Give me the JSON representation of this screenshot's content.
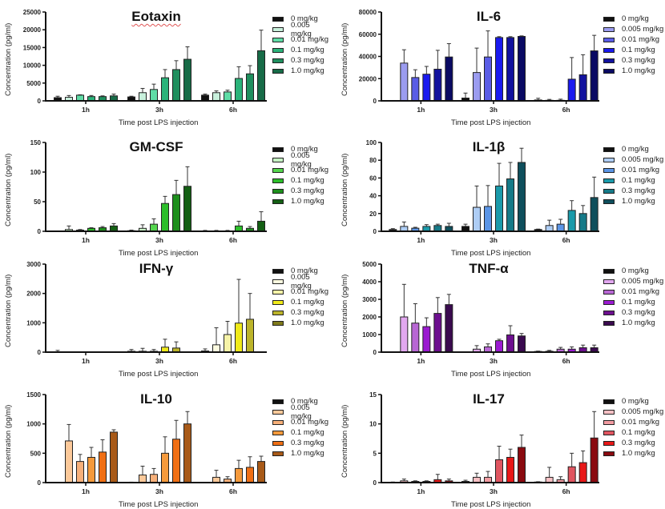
{
  "legend_labels": [
    "0 mg/kg",
    "0.005 mg/kg",
    "0.01 mg/kg",
    "0.1 mg/kg",
    "0.3 mg/kg",
    "1.0 mg/kg"
  ],
  "chart_data": [
    {
      "type": "bar",
      "title": "Eotaxin",
      "xlabel": "Time post LPS injection",
      "ylabel": "Concentration (pg/ml)",
      "categories": [
        "1h",
        "3h",
        "6h"
      ],
      "ylim": [
        0,
        25000
      ],
      "yticks": [
        0,
        5000,
        10000,
        15000,
        20000,
        25000
      ],
      "legend": "right",
      "colors": [
        "#111111",
        "#c8f0dc",
        "#5fdca6",
        "#2bb37a",
        "#1f8f5e",
        "#176b47"
      ],
      "series": [
        {
          "name": "0 mg/kg",
          "values": [
            900,
            1100,
            1600
          ],
          "errors": [
            400,
            200,
            300
          ]
        },
        {
          "name": "0.005 mg/kg",
          "values": [
            1000,
            2300,
            2300
          ],
          "errors": [
            500,
            1200,
            500
          ]
        },
        {
          "name": "0.01 mg/kg",
          "values": [
            1600,
            3200,
            2500
          ],
          "errors": [
            100,
            1500,
            500
          ]
        },
        {
          "name": "0.1 mg/kg",
          "values": [
            1200,
            6500,
            6300
          ],
          "errors": [
            300,
            2300,
            3300
          ]
        },
        {
          "name": "0.3 mg/kg",
          "values": [
            1200,
            8800,
            7600
          ],
          "errors": [
            200,
            2500,
            2300
          ]
        },
        {
          "name": "1.0 mg/kg",
          "values": [
            1400,
            11700,
            14100
          ],
          "errors": [
            500,
            3500,
            5800
          ]
        }
      ]
    },
    {
      "type": "bar",
      "title": "IL-6",
      "xlabel": "Time post LPS injection",
      "ylabel": "Concentration (pg/ml)",
      "categories": [
        "1h",
        "3h",
        "6h"
      ],
      "ylim": [
        0,
        80000
      ],
      "yticks": [
        0,
        20000,
        40000,
        60000,
        80000
      ],
      "legend": "right",
      "colors": [
        "#111111",
        "#9b9cf0",
        "#5a5de6",
        "#1a1aef",
        "#12129e",
        "#0a0a63"
      ],
      "series": [
        {
          "name": "0 mg/kg",
          "values": [
            0,
            2500,
            800
          ],
          "errors": [
            0,
            4500,
            1500
          ]
        },
        {
          "name": "0.005 mg/kg",
          "values": [
            34000,
            25500,
            500
          ],
          "errors": [
            12000,
            22000,
            800
          ]
        },
        {
          "name": "0.01 mg/kg",
          "values": [
            21000,
            39500,
            500
          ],
          "errors": [
            7000,
            23500,
            1000
          ]
        },
        {
          "name": "0.1 mg/kg",
          "values": [
            24000,
            57000,
            19500
          ],
          "errors": [
            7000,
            800,
            19500
          ]
        },
        {
          "name": "0.3 mg/kg",
          "values": [
            28500,
            57000,
            23500
          ],
          "errors": [
            17000,
            800,
            18000
          ]
        },
        {
          "name": "1.0 mg/kg",
          "values": [
            39500,
            58000,
            45000
          ],
          "errors": [
            12000,
            500,
            14000
          ]
        }
      ]
    },
    {
      "type": "bar",
      "title": "GM-CSF",
      "xlabel": "Time post LPS injection",
      "ylabel": "Concentration (pg/ml)",
      "categories": [
        "1h",
        "3h",
        "6h"
      ],
      "ylim": [
        0,
        150
      ],
      "yticks": [
        0,
        50,
        100,
        150
      ],
      "legend": "right",
      "colors": [
        "#111111",
        "#c6f2c4",
        "#55d64e",
        "#2cbe2a",
        "#1d8f1c",
        "#145f14"
      ],
      "series": [
        {
          "name": "0 mg/kg",
          "values": [
            0,
            1,
            0.5
          ],
          "errors": [
            0,
            1,
            1
          ]
        },
        {
          "name": "0.005 mg/kg",
          "values": [
            3,
            5,
            0.5
          ],
          "errors": [
            6,
            6,
            1
          ]
        },
        {
          "name": "0.01 mg/kg",
          "values": [
            2,
            12,
            0.5
          ],
          "errors": [
            1,
            9,
            1
          ]
        },
        {
          "name": "0.1 mg/kg",
          "values": [
            5,
            47,
            9
          ],
          "errors": [
            1,
            12,
            8
          ]
        },
        {
          "name": "0.3 mg/kg",
          "values": [
            6,
            62,
            5
          ],
          "errors": [
            2,
            24,
            3
          ]
        },
        {
          "name": "1.0 mg/kg",
          "values": [
            9,
            76,
            17
          ],
          "errors": [
            4,
            33,
            16
          ]
        }
      ]
    },
    {
      "type": "bar",
      "title": "IL-1β",
      "xlabel": "Time post LPS injection",
      "ylabel": "Concentration (pg/ml)",
      "categories": [
        "1h",
        "3h",
        "6h"
      ],
      "ylim": [
        0,
        100
      ],
      "yticks": [
        0,
        20,
        40,
        60,
        80,
        100
      ],
      "legend": "right",
      "colors": [
        "#111111",
        "#aecdf5",
        "#5b95e6",
        "#1a9aaa",
        "#167a88",
        "#0f4f5c"
      ],
      "series": [
        {
          "name": "0 mg/kg",
          "values": [
            2,
            5.5,
            2
          ],
          "errors": [
            1,
            2.5,
            0.5
          ]
        },
        {
          "name": "0.005 mg/kg",
          "values": [
            5.5,
            27,
            6.5
          ],
          "errors": [
            5,
            24,
            6
          ]
        },
        {
          "name": "0.01 mg/kg",
          "values": [
            3.5,
            28,
            8
          ],
          "errors": [
            1,
            23.5,
            5.5
          ]
        },
        {
          "name": "0.1 mg/kg",
          "values": [
            5.5,
            51,
            23.5
          ],
          "errors": [
            2,
            25.5,
            11
          ]
        },
        {
          "name": "0.3 mg/kg",
          "values": [
            6.5,
            59,
            20
          ],
          "errors": [
            1.5,
            18.5,
            9
          ]
        },
        {
          "name": "1.0 mg/kg",
          "values": [
            5.5,
            77.5,
            38
          ],
          "errors": [
            3.5,
            16,
            23
          ]
        }
      ]
    },
    {
      "type": "bar",
      "title": "IFN-γ",
      "xlabel": "Time post LPS injection",
      "ylabel": "Concentration (pg/ml)",
      "categories": [
        "1h",
        "3h",
        "6h"
      ],
      "ylim": [
        0,
        3000
      ],
      "yticks": [
        0,
        1000,
        2000,
        3000
      ],
      "legend": "right",
      "colors": [
        "#111111",
        "#fcfbe0",
        "#f6f3a8",
        "#f0ea1a",
        "#bcb42a",
        "#7f7a1a"
      ],
      "series": [
        {
          "name": "0 mg/kg",
          "values": [
            0,
            30,
            40
          ],
          "errors": [
            60,
            60,
            70
          ]
        },
        {
          "name": "0.005 mg/kg",
          "values": [
            0,
            30,
            250
          ],
          "errors": [
            0,
            100,
            580
          ]
        },
        {
          "name": "0.01 mg/kg",
          "values": [
            0,
            30,
            600
          ],
          "errors": [
            0,
            60,
            450
          ]
        },
        {
          "name": "0.1 mg/kg",
          "values": [
            0,
            170,
            990
          ],
          "errors": [
            0,
            270,
            1490
          ]
        },
        {
          "name": "0.3 mg/kg",
          "values": [
            0,
            140,
            1120
          ],
          "errors": [
            0,
            210,
            880
          ]
        },
        {
          "name": "1.0 mg/kg",
          "values": [
            0,
            0,
            0
          ],
          "errors": [
            0,
            0,
            0
          ]
        }
      ]
    },
    {
      "type": "bar",
      "title": "TNF-α",
      "xlabel": "Time post LPS injection",
      "ylabel": "Concentration (pg/ml)",
      "categories": [
        "1h",
        "3h",
        "6h"
      ],
      "ylim": [
        0,
        5000
      ],
      "yticks": [
        0,
        1000,
        2000,
        3000,
        4000,
        5000
      ],
      "legend": "right",
      "colors": [
        "#111111",
        "#e2a8f0",
        "#b867d4",
        "#9b1ad1",
        "#6d0f8f",
        "#3a0a4f"
      ],
      "series": [
        {
          "name": "0 mg/kg",
          "values": [
            0,
            0,
            40
          ],
          "errors": [
            0,
            0,
            20
          ]
        },
        {
          "name": "0.005 mg/kg",
          "values": [
            2000,
            170,
            50
          ],
          "errors": [
            1850,
            200,
            50
          ]
        },
        {
          "name": "0.01 mg/kg",
          "values": [
            1650,
            300,
            170
          ],
          "errors": [
            1100,
            170,
            100
          ]
        },
        {
          "name": "0.1 mg/kg",
          "values": [
            1450,
            650,
            170
          ],
          "errors": [
            500,
            80,
            130
          ]
        },
        {
          "name": "0.3 mg/kg",
          "values": [
            2200,
            980,
            250
          ],
          "errors": [
            900,
            520,
            150
          ]
        },
        {
          "name": "1.0 mg/kg",
          "values": [
            2700,
            920,
            250
          ],
          "errors": [
            580,
            140,
            150
          ]
        }
      ]
    },
    {
      "type": "bar",
      "title": "IL-10",
      "xlabel": "Time post LPS injection",
      "ylabel": "Concentration (pg/ml)",
      "categories": [
        "1h",
        "3h",
        "6h"
      ],
      "ylim": [
        0,
        1500
      ],
      "yticks": [
        0,
        500,
        1000,
        1500
      ],
      "legend": "right",
      "colors": [
        "#111111",
        "#fcc99a",
        "#f7b07a",
        "#f59a3c",
        "#f06f14",
        "#a85a18"
      ],
      "series": [
        {
          "name": "0 mg/kg",
          "values": [
            5,
            5,
            5
          ],
          "errors": [
            2,
            3,
            2
          ]
        },
        {
          "name": "0.005 mg/kg",
          "values": [
            710,
            130,
            90
          ],
          "errors": [
            280,
            150,
            120
          ]
        },
        {
          "name": "0.01 mg/kg",
          "values": [
            360,
            140,
            60
          ],
          "errors": [
            120,
            100,
            40
          ]
        },
        {
          "name": "0.1 mg/kg",
          "values": [
            430,
            500,
            240
          ],
          "errors": [
            170,
            280,
            140
          ]
        },
        {
          "name": "0.3 mg/kg",
          "values": [
            520,
            740,
            260
          ],
          "errors": [
            210,
            320,
            180
          ]
        },
        {
          "name": "1.0 mg/kg",
          "values": [
            860,
            1000,
            360
          ],
          "errors": [
            40,
            210,
            90
          ]
        }
      ]
    },
    {
      "type": "bar",
      "title": "IL-17",
      "xlabel": "Time post LPS injection",
      "ylabel": "Concentration (pg/ml)",
      "categories": [
        "1h",
        "3h",
        "6h"
      ],
      "ylim": [
        0,
        15
      ],
      "yticks": [
        0,
        5,
        10,
        15
      ],
      "legend": "right",
      "colors": [
        "#111111",
        "#f7c0c4",
        "#f29ca2",
        "#e05560",
        "#e81818",
        "#8a0a10"
      ],
      "series": [
        {
          "name": "0 mg/kg",
          "values": [
            0.05,
            0.2,
            0.1
          ],
          "errors": [
            0.05,
            0.2,
            0.05
          ]
        },
        {
          "name": "0.005 mg/kg",
          "values": [
            0.3,
            0.9,
            0.9
          ],
          "errors": [
            0.3,
            0.7,
            1.7
          ]
        },
        {
          "name": "0.01 mg/kg",
          "values": [
            0.2,
            0.9,
            0.5
          ],
          "errors": [
            0.1,
            1.0,
            0.5
          ]
        },
        {
          "name": "0.1 mg/kg",
          "values": [
            0.2,
            3.9,
            2.7
          ],
          "errors": [
            0.1,
            2.3,
            2.3
          ]
        },
        {
          "name": "0.3 mg/kg",
          "values": [
            0.5,
            4.3,
            3.4
          ],
          "errors": [
            0.9,
            1.4,
            2.0
          ]
        },
        {
          "name": "1.0 mg/kg",
          "values": [
            0.3,
            6.0,
            7.6
          ],
          "errors": [
            0.3,
            2.1,
            4.5
          ]
        }
      ]
    }
  ]
}
